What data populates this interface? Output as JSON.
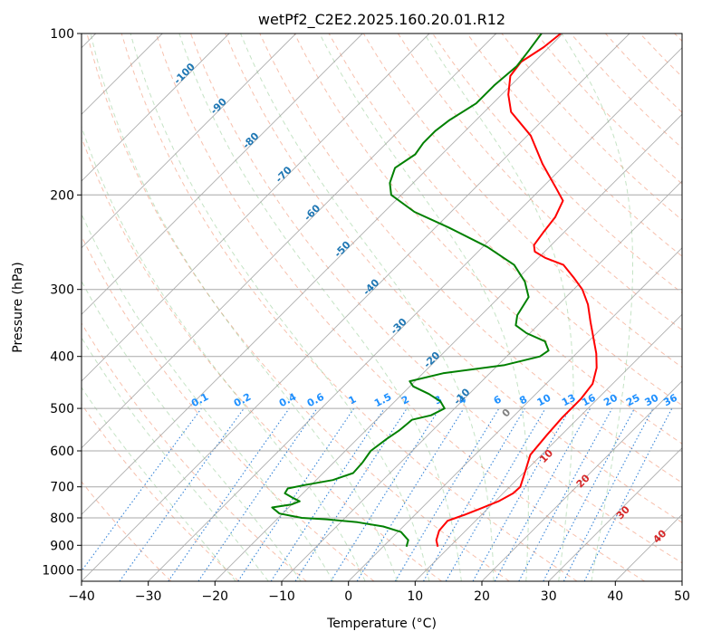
{
  "chart_data": {
    "type": "line",
    "title": "wetPf2_C2E2.2025.160.20.01.R12",
    "xlabel": "Temperature (°C)",
    "ylabel": "Pressure (hPa)",
    "xlim": [
      -40,
      50
    ],
    "ylim": [
      1050,
      100
    ],
    "y_scale": "log",
    "grid": true,
    "x_ticks": [
      -40,
      -30,
      -20,
      -10,
      0,
      10,
      20,
      30,
      40,
      50
    ],
    "x_tick_labels": [
      "−40",
      "−30",
      "−20",
      "−10",
      "0",
      "10",
      "20",
      "30",
      "40",
      "50"
    ],
    "y_ticks": [
      100,
      200,
      300,
      400,
      500,
      600,
      700,
      800,
      900,
      1000
    ],
    "y_tick_labels": [
      "100",
      "200",
      "300",
      "400",
      "500",
      "600",
      "700",
      "800",
      "900",
      "1000"
    ],
    "skew_factor": 1,
    "series": [
      {
        "key": "temperature",
        "color": "#ff0000",
        "points": [
          [
            905,
            8.2
          ],
          [
            880,
            7.0
          ],
          [
            845,
            6.0
          ],
          [
            810,
            5.8
          ],
          [
            800,
            6.6
          ],
          [
            790,
            7.4
          ],
          [
            770,
            8.8
          ],
          [
            745,
            10.5
          ],
          [
            720,
            11.5
          ],
          [
            700,
            11.6
          ],
          [
            660,
            10.2
          ],
          [
            610,
            8.3
          ],
          [
            560,
            7.8
          ],
          [
            520,
            7.5
          ],
          [
            480,
            7.5
          ],
          [
            450,
            7.0
          ],
          [
            420,
            5.2
          ],
          [
            395,
            3.0
          ],
          [
            370,
            0.3
          ],
          [
            345,
            -2.6
          ],
          [
            320,
            -5.6
          ],
          [
            300,
            -8.7
          ],
          [
            285,
            -11.8
          ],
          [
            270,
            -15.2
          ],
          [
            262,
            -19.0
          ],
          [
            255,
            -21.5
          ],
          [
            248,
            -22.6
          ],
          [
            235,
            -23.1
          ],
          [
            220,
            -23.6
          ],
          [
            205,
            -24.9
          ],
          [
            195,
            -27.6
          ],
          [
            175,
            -33.5
          ],
          [
            155,
            -39.5
          ],
          [
            140,
            -46.0
          ],
          [
            130,
            -49.0
          ],
          [
            120,
            -51.5
          ],
          [
            113,
            -52.0
          ],
          [
            106,
            -50.8
          ],
          [
            100,
            -50.3
          ]
        ]
      },
      {
        "key": "dewpoint",
        "color": "#008000",
        "points": [
          [
            905,
            3.5
          ],
          [
            880,
            2.8
          ],
          [
            850,
            0.5
          ],
          [
            830,
            -3.0
          ],
          [
            815,
            -7.5
          ],
          [
            805,
            -12.5
          ],
          [
            800,
            -16.5
          ],
          [
            785,
            -20.5
          ],
          [
            765,
            -22.5
          ],
          [
            755,
            -20.0
          ],
          [
            745,
            -19.3
          ],
          [
            735,
            -20.7
          ],
          [
            720,
            -22.7
          ],
          [
            705,
            -23.0
          ],
          [
            695,
            -21.0
          ],
          [
            680,
            -17.5
          ],
          [
            660,
            -15.5
          ],
          [
            630,
            -15.7
          ],
          [
            600,
            -16.2
          ],
          [
            570,
            -15.6
          ],
          [
            550,
            -15.0
          ],
          [
            535,
            -14.8
          ],
          [
            525,
            -14.7
          ],
          [
            515,
            -12.5
          ],
          [
            500,
            -11.5
          ],
          [
            485,
            -13.2
          ],
          [
            470,
            -16.0
          ],
          [
            455,
            -19.5
          ],
          [
            445,
            -20.8
          ],
          [
            430,
            -17.0
          ],
          [
            415,
            -9.0
          ],
          [
            400,
            -5.0
          ],
          [
            390,
            -4.6
          ],
          [
            375,
            -6.5
          ],
          [
            362,
            -10.5
          ],
          [
            350,
            -13.3
          ],
          [
            335,
            -14.6
          ],
          [
            310,
            -15.6
          ],
          [
            290,
            -18.5
          ],
          [
            270,
            -22.6
          ],
          [
            250,
            -29.3
          ],
          [
            230,
            -38.0
          ],
          [
            215,
            -45.5
          ],
          [
            200,
            -51.5
          ],
          [
            190,
            -53.5
          ],
          [
            178,
            -55.0
          ],
          [
            168,
            -54.0
          ],
          [
            160,
            -54.5
          ],
          [
            152,
            -54.5
          ],
          [
            145,
            -54.0
          ],
          [
            135,
            -52.5
          ],
          [
            125,
            -52.5
          ],
          [
            115,
            -52.0
          ],
          [
            108,
            -52.5
          ],
          [
            100,
            -53.2
          ]
        ]
      }
    ],
    "dry_adiabats": [
      -30,
      -20,
      -10,
      0,
      10,
      20,
      30,
      40,
      50,
      60,
      70,
      80,
      90,
      100,
      110,
      120,
      130,
      140,
      150,
      160,
      170,
      180,
      190
    ],
    "moist_adiabats": [
      -20,
      -15,
      -10,
      -5,
      0,
      5,
      10,
      15,
      20,
      25,
      30,
      35
    ],
    "theta_labels": [
      {
        "text": "-100",
        "t": -100,
        "p": 120
      },
      {
        "text": "-90",
        "t": -90,
        "p": 138
      },
      {
        "text": "-80",
        "t": -80,
        "p": 160
      },
      {
        "text": "-70",
        "t": -70,
        "p": 185
      },
      {
        "text": "-60",
        "t": -60,
        "p": 218
      },
      {
        "text": "-50",
        "t": -50,
        "p": 255
      },
      {
        "text": "-40",
        "t": -40,
        "p": 300
      },
      {
        "text": "-30",
        "t": -30,
        "p": 355
      },
      {
        "text": "-20",
        "t": -20,
        "p": 410
      },
      {
        "text": "-10",
        "t": -10,
        "p": 480
      }
    ],
    "mixing_ratio_labels": [
      "0.1",
      "0.2",
      "0.4",
      "0.6",
      "1",
      "1.5",
      "2",
      "3",
      "4",
      "6",
      "8",
      "10",
      "13",
      "16",
      "20",
      "25",
      "30",
      "36"
    ],
    "mixing_ratio_values": [
      0.1,
      0.2,
      0.4,
      0.6,
      1,
      1.5,
      2,
      3,
      4,
      6,
      8,
      10,
      13,
      16,
      20,
      25,
      30,
      36
    ],
    "temp_labels": [
      {
        "text": "0",
        "x": 24,
        "p": 515,
        "color": "#808080"
      },
      {
        "text": "10",
        "x": 30,
        "p": 620,
        "color": "#d62728"
      },
      {
        "text": "20",
        "x": 35.5,
        "p": 690,
        "color": "#d62728"
      },
      {
        "text": "30",
        "x": 41.5,
        "p": 790,
        "color": "#d62728"
      },
      {
        "text": "40",
        "x": 47,
        "p": 875,
        "color": "#d62728"
      }
    ]
  }
}
